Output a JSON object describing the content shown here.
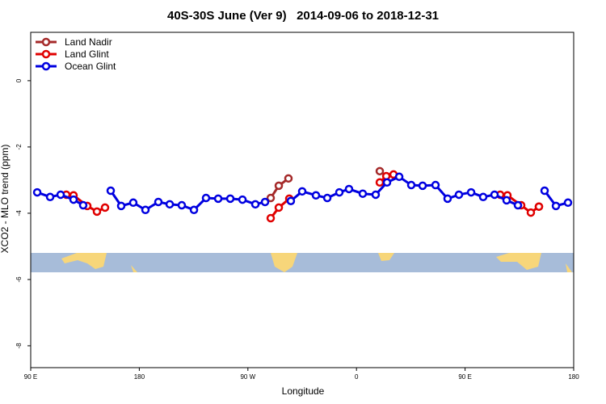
{
  "chart_data": {
    "type": "line",
    "title": "40S-30S June (Ver 9)   2014-09-06 to 2018-12-31",
    "x_label": "Longitude",
    "y_label": "XCO2 - MLO trend (ppm)",
    "xlim": [
      90,
      540
    ],
    "ylim": [
      -8.66,
      1.46
    ],
    "xticks": [
      {
        "value": 90,
        "label": "90 E"
      },
      180,
      {
        "value": 270,
        "label": "90 W"
      },
      {
        "value": 360,
        "label": "0"
      },
      {
        "value": 450,
        "label": "90 E"
      },
      {
        "value": 540,
        "label": "180"
      }
    ],
    "yticks": [
      0,
      -2,
      -4,
      -6,
      -8
    ],
    "legend": "top-left",
    "series": [
      {
        "name": "Land Nadir",
        "color": "#a52a2a",
        "x": [
          288.9,
          295.6,
          303.6,
          null,
          379.3,
          null,
          511.2
        ],
        "values": [
          -3.54,
          -3.17,
          -2.95,
          null,
          -2.73,
          null,
          -3.8
        ]
      },
      {
        "name": "Land Glint",
        "color": "#e00000",
        "x": [
          119.5,
          125.5,
          136.9,
          144.9,
          151.6,
          null,
          288.9,
          295.6,
          304.3,
          null,
          379.3,
          384.7,
          390.7,
          null,
          479.1,
          485.1,
          496.5,
          504.5,
          511.2
        ],
        "values": [
          -3.44,
          -3.46,
          -3.78,
          -3.95,
          -3.83,
          null,
          -4.15,
          -3.83,
          -3.56,
          null,
          -3.07,
          -2.88,
          -2.83,
          null,
          -3.44,
          -3.46,
          -3.76,
          -3.98,
          -3.8
        ]
      },
      {
        "name": "Ocean Glint",
        "color": "#0000e0",
        "x": [
          95.4,
          106.1,
          114.8,
          125.5,
          133.5,
          null,
          156.3,
          165.0,
          175.0,
          185.1,
          195.8,
          205.2,
          215.2,
          225.3,
          235.3,
          245.4,
          255.4,
          265.5,
          276.2,
          284.2,
          null,
          305.6,
          315.0,
          326.4,
          335.8,
          345.8,
          353.8,
          365.2,
          375.9,
          385.3,
          395.4,
          405.4,
          414.8,
          425.5,
          435.5,
          444.9,
          455.0,
          465.0,
          474.4,
          484.4,
          493.8,
          null,
          515.9,
          525.3,
          535.3
        ],
        "values": [
          -3.37,
          -3.51,
          -3.44,
          -3.59,
          -3.76,
          null,
          -3.32,
          -3.78,
          -3.68,
          -3.9,
          -3.66,
          -3.73,
          -3.76,
          -3.9,
          -3.54,
          -3.56,
          -3.56,
          -3.59,
          -3.73,
          -3.66,
          null,
          -3.63,
          -3.34,
          -3.46,
          -3.54,
          -3.37,
          -3.27,
          -3.41,
          -3.44,
          -3.07,
          -2.9,
          -3.15,
          -3.17,
          -3.15,
          -3.56,
          -3.44,
          -3.37,
          -3.51,
          -3.44,
          -3.61,
          -3.76,
          null,
          -3.32,
          -3.78,
          -3.68
        ]
      }
    ]
  }
}
